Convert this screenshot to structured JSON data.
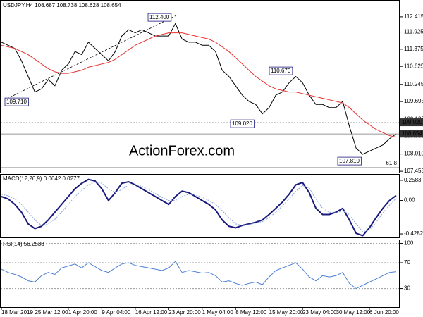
{
  "chart_data": [
    {
      "type": "line",
      "title": "USDJPY,H4 108.687 108.738 108.628 108.654",
      "watermark": "ActionForex.com",
      "categories": [
        "18 Mar 2019",
        null,
        null,
        null,
        null,
        "25 Mar 12:00",
        null,
        null,
        null,
        null,
        "1 Apr 20:00",
        null,
        null,
        null,
        null,
        "9 Apr 04:00",
        null,
        null,
        null,
        null,
        "16 Apr 12:00",
        null,
        null,
        null,
        null,
        "23 Apr 20:00",
        null,
        null,
        null,
        null,
        "1 May 04:00",
        null,
        null,
        null,
        null,
        "8 May 12:00",
        null,
        null,
        null,
        null,
        "15 May 20:00",
        null,
        null,
        null,
        null,
        "23 May 04:00",
        null,
        null,
        null,
        null,
        "30 May 12:00",
        null,
        null,
        null,
        null,
        "6 Jun 20:00",
        null,
        null,
        null,
        null
      ],
      "series": [
        {
          "color": "#000000",
          "values": [
            111.6,
            111.5,
            111.4,
            111.0,
            110.5,
            110.0,
            110.1,
            110.4,
            110.2,
            110.7,
            110.9,
            111.3,
            111.2,
            111.6,
            111.4,
            111.2,
            111.0,
            111.3,
            111.8,
            112.0,
            111.9,
            112.0,
            111.9,
            111.8,
            111.8,
            111.8,
            112.2,
            111.7,
            111.6,
            111.6,
            111.5,
            111.5,
            111.3,
            110.7,
            110.5,
            110.2,
            109.9,
            109.7,
            109.6,
            109.3,
            109.5,
            109.9,
            110.0,
            110.3,
            110.5,
            110.3,
            109.9,
            109.6,
            109.6,
            109.5,
            109.5,
            109.7,
            108.9,
            108.2,
            108.0,
            108.1,
            108.2,
            108.3,
            108.5,
            108.654
          ]
        },
        {
          "color": "#e8312f",
          "values": [
            111.5,
            111.45,
            111.4,
            111.3,
            111.2,
            111.05,
            110.9,
            110.75,
            110.65,
            110.6,
            110.6,
            110.65,
            110.7,
            110.8,
            110.85,
            110.9,
            110.95,
            111.05,
            111.2,
            111.35,
            111.5,
            111.6,
            111.7,
            111.8,
            111.85,
            111.9,
            111.9,
            111.9,
            111.85,
            111.8,
            111.75,
            111.7,
            111.6,
            111.45,
            111.3,
            111.1,
            110.9,
            110.7,
            110.5,
            110.35,
            110.2,
            110.1,
            110.05,
            110.0,
            110.0,
            109.95,
            109.9,
            109.85,
            109.8,
            109.75,
            109.7,
            109.65,
            109.5,
            109.3,
            109.1,
            108.95,
            108.8,
            108.7,
            108.6,
            108.55
          ]
        }
      ],
      "ylim": [
        107.39,
        112.91
      ],
      "yticks": [
        112.415,
        111.925,
        111.375,
        110.825,
        110.245,
        109.695,
        109.125,
        108.585,
        {
          "value": 108.01,
          "label": "108.010"
        },
        107.455
      ],
      "levels": [
        {
          "value": 109.02,
          "label": "109.020"
        },
        108.654
      ],
      "annotations": [
        "112.400",
        "110.670",
        "109.710",
        "109.020",
        "107.810",
        "61.8"
      ]
    },
    {
      "type": "line",
      "title": "MACD(12,26,9) 0.0642 0.0277",
      "series": [
        {
          "color": "#1a1a7e",
          "values": [
            0.05,
            0.02,
            -0.05,
            -0.15,
            -0.3,
            -0.36,
            -0.33,
            -0.25,
            -0.15,
            -0.05,
            0.05,
            0.15,
            0.22,
            0.27,
            0.25,
            0.15,
            0.0,
            0.1,
            0.22,
            0.24,
            0.2,
            0.15,
            0.1,
            0.05,
            0.0,
            -0.05,
            0.05,
            0.12,
            0.1,
            0.05,
            0.0,
            -0.05,
            -0.12,
            -0.25,
            -0.33,
            -0.35,
            -0.32,
            -0.3,
            -0.28,
            -0.25,
            -0.18,
            -0.1,
            -0.02,
            0.08,
            0.2,
            0.23,
            0.1,
            -0.1,
            -0.18,
            -0.18,
            -0.15,
            -0.1,
            -0.25,
            -0.42,
            -0.45,
            -0.35,
            -0.22,
            -0.1,
            0.0,
            0.0642
          ]
        },
        {
          "color": "#8fa8d8",
          "values": [
            0.08,
            0.06,
            0.02,
            -0.05,
            -0.15,
            -0.25,
            -0.32,
            -0.3,
            -0.24,
            -0.15,
            -0.05,
            0.05,
            0.13,
            0.2,
            0.24,
            0.22,
            0.15,
            0.1,
            0.14,
            0.2,
            0.2,
            0.18,
            0.14,
            0.09,
            0.04,
            0.0,
            0.0,
            0.05,
            0.08,
            0.07,
            0.04,
            0.0,
            -0.05,
            -0.13,
            -0.22,
            -0.3,
            -0.32,
            -0.31,
            -0.29,
            -0.27,
            -0.22,
            -0.15,
            -0.07,
            0.02,
            0.12,
            0.19,
            0.16,
            0.02,
            -0.1,
            -0.15,
            -0.16,
            -0.13,
            -0.18,
            -0.3,
            -0.4,
            -0.38,
            -0.28,
            -0.16,
            -0.06,
            0.0277
          ]
        }
      ],
      "ylim": [
        -0.482,
        0.33
      ],
      "yticks": [
        0.2583,
        {
          "value": 0,
          "label": "0.00"
        },
        -0.4282
      ]
    },
    {
      "type": "line",
      "title": "RSI(14) 56.2538",
      "series": [
        {
          "color": "#4a7fd4",
          "values": [
            60,
            55,
            52,
            48,
            42,
            40,
            50,
            55,
            52,
            62,
            65,
            68,
            62,
            70,
            64,
            58,
            55,
            62,
            68,
            70,
            66,
            64,
            62,
            60,
            58,
            62,
            72,
            55,
            58,
            56,
            54,
            55,
            50,
            40,
            42,
            38,
            35,
            38,
            40,
            36,
            48,
            58,
            62,
            66,
            70,
            60,
            48,
            42,
            50,
            48,
            50,
            55,
            38,
            30,
            35,
            40,
            45,
            50,
            55,
            56.2538
          ]
        }
      ],
      "ylim": [
        0,
        105
      ],
      "yticks": [
        100,
        70,
        30
      ]
    }
  ]
}
